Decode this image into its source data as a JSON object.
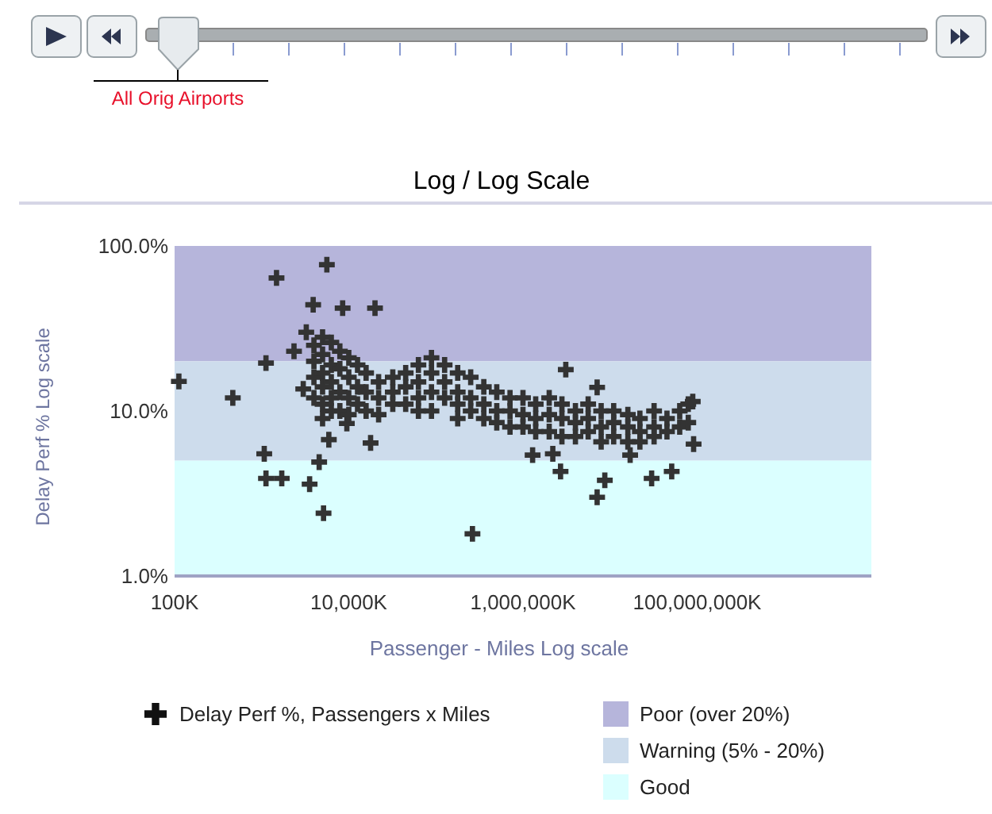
{
  "chart_data": {
    "type": "scatter",
    "title": "Log / Log Scale",
    "xlabel": "Passenger - Miles Log scale",
    "ylabel": "Delay Perf % Log scale",
    "annotations": [
      "All Orig Airports"
    ],
    "log": "xy",
    "xlim": [
      100,
      10000000000
    ],
    "ylim": [
      1,
      100
    ],
    "xticks": [
      {
        "value": 100,
        "label": "100K"
      },
      {
        "value": 10000,
        "label": "10,000K"
      },
      {
        "value": 1000000,
        "label": "1,000,000K"
      },
      {
        "value": 100000000,
        "label": "100,000,000K"
      }
    ],
    "yticks": [
      {
        "value": 1,
        "label": "1.0%"
      },
      {
        "value": 10,
        "label": "10.0%"
      },
      {
        "value": 100,
        "label": "100.0%"
      }
    ],
    "marker": "cross",
    "legend": "bottom",
    "bands": [
      {
        "axis": "y",
        "from": 20,
        "to": 100,
        "label": "Poor (over 20%)",
        "color": "#b6b5db"
      },
      {
        "axis": "y",
        "from": 5,
        "to": 20,
        "label": "Warning (5% - 20%)",
        "color": "#cddcec"
      },
      {
        "axis": "y",
        "from": 1,
        "to": 5,
        "label": "Good",
        "color": "#dbffff"
      }
    ],
    "series": [
      {
        "name": "Delay Perf %, Passengers x Miles",
        "color": "#333333",
        "x": [
          112,
          466,
          1480,
          5600,
          3900,
          8500,
          20000,
          1120,
          1070,
          1120,
          1700,
          3550,
          4570,
          5130,
          5900,
          17800,
          263000,
          2350,
          3250,
          9500,
          3000,
          3100000,
          7100000,
          1290000,
          2200000,
          2700000,
          8700000,
          7100000,
          17000000,
          30000000,
          51000000,
          91000000,
          89000000,
          3980,
          3980,
          3980,
          3980,
          5000,
          5000,
          5000,
          5000,
          5000,
          5000,
          6300,
          6300,
          6300,
          6300,
          6300,
          7900,
          7900,
          7900,
          7900,
          10000,
          10000,
          10000,
          10000,
          12600,
          12600,
          12600,
          15800,
          15800,
          15800,
          22000,
          22000,
          22000,
          32000,
          32000,
          32000,
          45000,
          45000,
          45000,
          63000,
          63000,
          63000,
          63000,
          89000,
          89000,
          89000,
          89000,
          126000,
          126000,
          126000,
          178000,
          178000,
          178000,
          178000,
          251000,
          251000,
          251000,
          355000,
          355000,
          355000,
          500000,
          500000,
          500000,
          710000,
          710000,
          710000,
          1000000,
          1000000,
          1000000,
          1400000,
          1400000,
          1400000,
          2000000,
          2000000,
          2000000,
          2800000,
          2800000,
          2800000,
          4000000,
          4000000,
          4000000,
          5600000,
          5600000,
          5600000,
          7900000,
          7900000,
          7900000,
          11000000,
          11000000,
          11000000,
          16000000,
          16000000,
          16000000,
          22000000,
          22000000,
          22000000,
          32000000,
          32000000,
          32000000,
          45000000,
          45000000,
          63000000,
          63000000,
          79000000,
          79000000
        ],
        "values": [
          15.1,
          12,
          64,
          77,
          44,
          42,
          42,
          19.5,
          5.5,
          3.9,
          3.9,
          3.6,
          4.9,
          2.4,
          6.7,
          6.4,
          1.8,
          23,
          30,
          8.4,
          13.6,
          17.8,
          13.9,
          5.4,
          5.5,
          4.3,
          3.8,
          3,
          5.4,
          3.9,
          4.3,
          6.3,
          11.4,
          25,
          20,
          16,
          12,
          28,
          22,
          17,
          14,
          11,
          9,
          26,
          19,
          15,
          12,
          10,
          23,
          18,
          13,
          10,
          21,
          16,
          12,
          9.5,
          19,
          14,
          11,
          17,
          13,
          10,
          15,
          12,
          9.5,
          16,
          13,
          11,
          17,
          14,
          11,
          19,
          15,
          12,
          10,
          21,
          17,
          13,
          10,
          19,
          15,
          12,
          17,
          13,
          11,
          9,
          16,
          12,
          10,
          14,
          11,
          9,
          13,
          10,
          8.5,
          12,
          10,
          8,
          12,
          9.5,
          8,
          11,
          9,
          7.5,
          12,
          9.5,
          7.5,
          11,
          9,
          7,
          10,
          8.5,
          7,
          11,
          9,
          7.5,
          10,
          8,
          6.5,
          10,
          8.5,
          7,
          9.5,
          8,
          6.5,
          9,
          7.5,
          6.5,
          10,
          8,
          7,
          9,
          7.5,
          10,
          8,
          11,
          8.5
        ]
      }
    ]
  }
}
